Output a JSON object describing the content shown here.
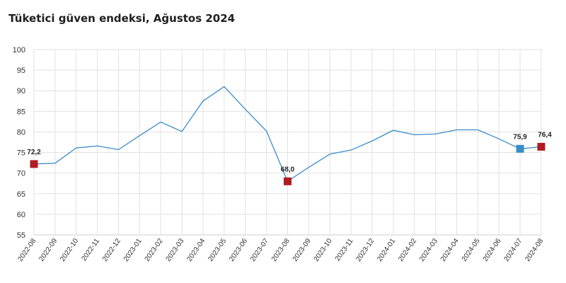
{
  "title": "Tüketici güven endeksi, Ağustos 2024",
  "chart_data": {
    "type": "line",
    "title": "Tüketici güven endeksi, Ağustos 2024",
    "xlabel": "",
    "ylabel": "",
    "ylim": [
      55,
      100
    ],
    "yticks": [
      55,
      60,
      65,
      70,
      75,
      80,
      85,
      90,
      95,
      100
    ],
    "grid": true,
    "legend": "none",
    "line_color": "#3a8cc8",
    "categories": [
      "2022-08",
      "2022-09",
      "2022-10",
      "2022-11",
      "2022-12",
      "2023-01",
      "2023-02",
      "2023-03",
      "2023-04",
      "2023-05",
      "2023-06",
      "2023-07",
      "2023-08",
      "2023-09",
      "2023-10",
      "2023-11",
      "2023-12",
      "2024-01",
      "2024-02",
      "2024-03",
      "2024-04",
      "2024-05",
      "2024-06",
      "2024-07",
      "2024-08"
    ],
    "series": [
      {
        "values": [
          72.2,
          72.4,
          76.1,
          76.6,
          75.7,
          79.1,
          82.4,
          80.1,
          87.5,
          91.0,
          85.5,
          80.2,
          68.0,
          71.4,
          74.6,
          75.6,
          77.8,
          80.4,
          79.3,
          79.5,
          80.5,
          80.5,
          78.3,
          75.9,
          76.4
        ]
      }
    ],
    "markers": [
      {
        "category": "2022-08",
        "value": 72.2,
        "label": "72,2",
        "color": "#b01c22"
      },
      {
        "category": "2023-08",
        "value": 68.0,
        "label": "68,0",
        "color": "#b01c22"
      },
      {
        "category": "2024-07",
        "value": 75.9,
        "label": "75,9",
        "color": "#3a8cc8"
      },
      {
        "category": "2024-08",
        "value": 76.4,
        "label": "76,4",
        "color": "#b01c22"
      }
    ]
  }
}
